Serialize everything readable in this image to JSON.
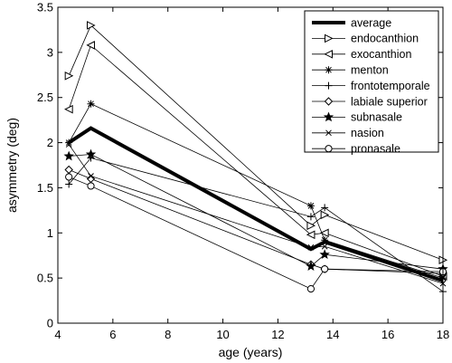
{
  "chart_data": {
    "type": "line",
    "xlabel": "age (years)",
    "ylabel": "asymmetry (deg)",
    "xlim": [
      4,
      18
    ],
    "ylim": [
      0,
      3.5
    ],
    "xticks": [
      4,
      6,
      8,
      10,
      12,
      14,
      16,
      18
    ],
    "yticks": [
      0,
      0.5,
      1,
      1.5,
      2,
      2.5,
      3,
      3.5
    ],
    "x_tick_labels": [
      "4",
      "6",
      "8",
      "10",
      "12",
      "14",
      "16",
      "18"
    ],
    "y_tick_labels": [
      "0",
      "0.5",
      "1",
      "1.5",
      "2",
      "2.5",
      "3",
      "3.5"
    ],
    "x": [
      4.4,
      5.2,
      13.2,
      13.7,
      18
    ],
    "grid": false,
    "legend_position": "top-right",
    "series": [
      {
        "name": "average",
        "marker": "none",
        "values": [
          2.0,
          2.16,
          0.82,
          0.9,
          0.47
        ]
      },
      {
        "name": "endocanthion",
        "marker": "triangle-right",
        "values": [
          2.74,
          3.3,
          1.08,
          1.2,
          0.7
        ]
      },
      {
        "name": "exocanthion",
        "marker": "triangle-left",
        "values": [
          2.37,
          3.08,
          0.98,
          1.0,
          0.52
        ]
      },
      {
        "name": "menton",
        "marker": "asterisk",
        "values": [
          2.0,
          2.43,
          1.3,
          0.92,
          0.5
        ]
      },
      {
        "name": "frontotemporale",
        "marker": "plus",
        "values": [
          1.54,
          1.83,
          1.18,
          1.28,
          0.35
        ]
      },
      {
        "name": "labiale superior",
        "marker": "diamond",
        "values": [
          1.7,
          1.6,
          0.65,
          0.6,
          0.55
        ]
      },
      {
        "name": "subnasale",
        "marker": "star",
        "values": [
          1.85,
          1.87,
          0.63,
          0.76,
          0.6
        ]
      },
      {
        "name": "nasion",
        "marker": "x",
        "values": [
          1.98,
          1.63,
          0.84,
          0.85,
          0.44
        ]
      },
      {
        "name": "pronasale",
        "marker": "circle",
        "values": [
          1.62,
          1.52,
          0.38,
          0.6,
          0.57
        ]
      }
    ]
  }
}
